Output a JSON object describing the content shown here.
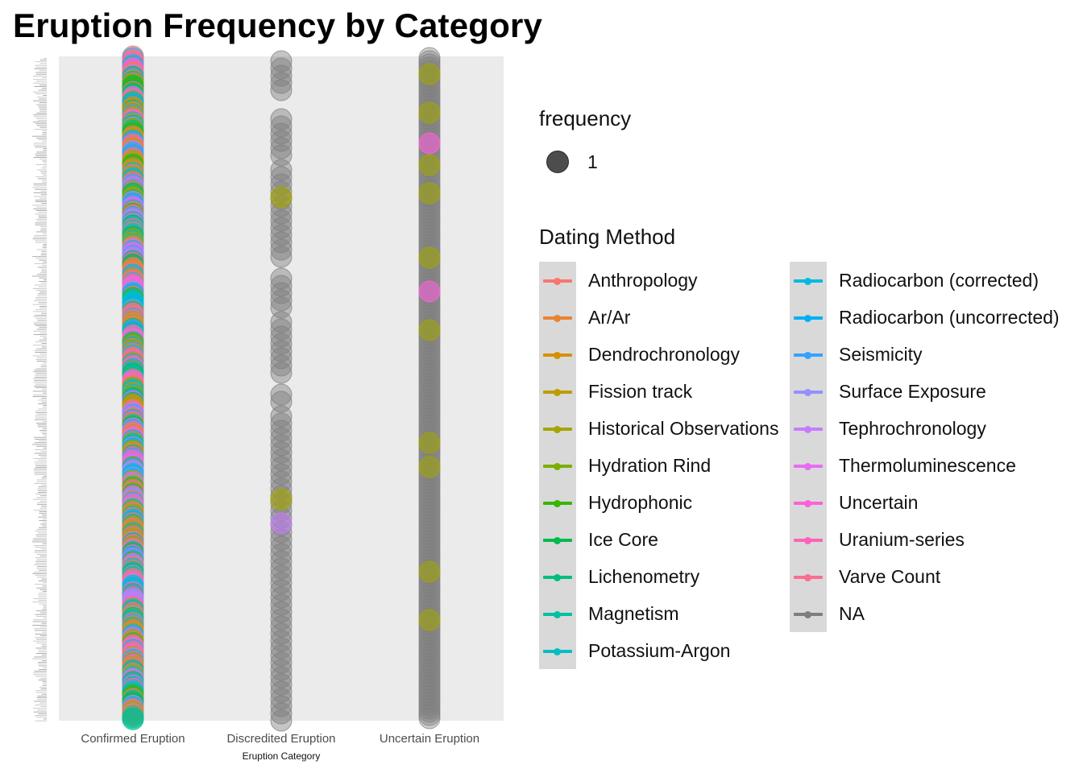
{
  "chart_data": {
    "type": "scatter",
    "title": "Eruption Frequency by Category",
    "xlabel": "Eruption Category",
    "ylabel": "",
    "categories": [
      "Confirmed Eruption",
      "Discredited Eruption",
      "Uncertain Eruption"
    ],
    "size_legend": {
      "title": "frequency",
      "values": [
        1
      ]
    },
    "color_legend": {
      "title": "Dating Method",
      "entries": [
        {
          "name": "Anthropology",
          "color": "#F8766D"
        },
        {
          "name": "Ar/Ar",
          "color": "#EA8331"
        },
        {
          "name": "Dendrochronology",
          "color": "#D89000"
        },
        {
          "name": "Fission track",
          "color": "#C09B00"
        },
        {
          "name": "Historical Observations",
          "color": "#A3A500"
        },
        {
          "name": "Hydration Rind",
          "color": "#7CAE00"
        },
        {
          "name": "Hydrophonic",
          "color": "#39B600"
        },
        {
          "name": "Ice Core",
          "color": "#00BB4E"
        },
        {
          "name": "Lichenometry",
          "color": "#00BF7D"
        },
        {
          "name": "Magnetism",
          "color": "#00C1A3"
        },
        {
          "name": "Potassium-Argon",
          "color": "#00BFC4"
        },
        {
          "name": "Radiocarbon (corrected)",
          "color": "#00BAE0"
        },
        {
          "name": "Radiocarbon (uncorrected)",
          "color": "#00B0F6"
        },
        {
          "name": "Seismicity",
          "color": "#35A2FF"
        },
        {
          "name": "Surface Exposure",
          "color": "#9590FF"
        },
        {
          "name": "Tephrochronology",
          "color": "#C77CFF"
        },
        {
          "name": "Thermoluminescence",
          "color": "#E76BF3"
        },
        {
          "name": "Uncertain",
          "color": "#FA62DB"
        },
        {
          "name": "Uranium-series",
          "color": "#FF62BC"
        },
        {
          "name": "Varve Count",
          "color": "#FF6C91"
        },
        {
          "name": "NA",
          "color": "#7F7F7F"
        }
      ]
    },
    "panel_background": "#EBEBEB",
    "grid": false,
    "legend_position": "right",
    "point_size_frequency": 1
  }
}
